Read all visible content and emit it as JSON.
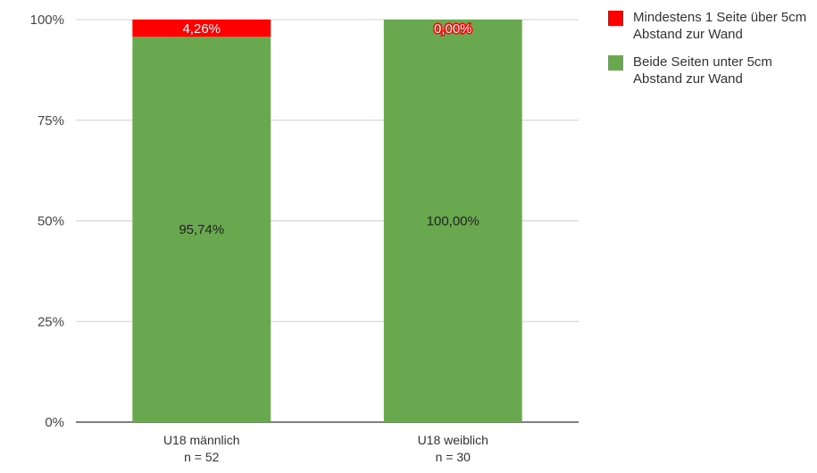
{
  "chart_data": {
    "type": "bar",
    "stacked": true,
    "percent": true,
    "categories": [
      [
        "U18 männlich",
        "n = 52"
      ],
      [
        "U18 weiblich",
        "n = 30"
      ]
    ],
    "series": [
      {
        "name": "Beide Seiten unter 5cm Abstand zur Wand",
        "values": [
          95.74,
          100.0
        ],
        "labels": [
          "95,74%",
          "100,00%"
        ],
        "color": "#6aa84f"
      },
      {
        "name": "Mindestens 1 Seite über 5cm Abstand zur Wand",
        "values": [
          4.26,
          0.0
        ],
        "labels": [
          "4,26%",
          "0,00%"
        ],
        "color": "#ff0000"
      }
    ],
    "y_ticks": [
      "0%",
      "25%",
      "50%",
      "75%",
      "100%"
    ],
    "ylim": [
      0,
      100
    ],
    "grid": true,
    "legend_position": "right"
  },
  "legend": [
    {
      "label": "Mindestens 1 Seite über 5cm Abstand zur Wand",
      "color": "#ff0000"
    },
    {
      "label": "Beide Seiten unter 5cm Abstand zur Wand",
      "color": "#6aa84f"
    }
  ]
}
